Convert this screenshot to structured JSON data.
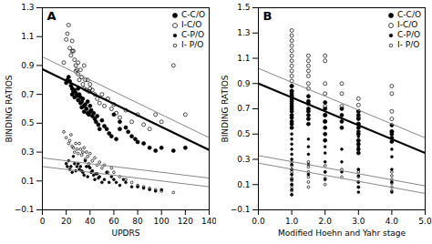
{
  "chart_data": [
    {
      "type": "scatter",
      "title": "A",
      "xlabel": "UPDRS",
      "ylabel": "BINDING RATIOS",
      "xlim": [
        0,
        140
      ],
      "ylim": [
        -0.1,
        1.3
      ],
      "xticks": [
        0,
        20,
        40,
        60,
        80,
        100,
        120,
        140
      ],
      "yticks": [
        -0.1,
        0.1,
        0.3,
        0.5,
        0.7,
        0.9,
        1.1,
        1.3
      ],
      "legend": "upper right",
      "series": [
        {
          "name": "C-C/O",
          "type": "scatter",
          "marker": "circle",
          "color": "#000000",
          "x": [
            20,
            21,
            22,
            23,
            24,
            25,
            25,
            26,
            27,
            27,
            28,
            29,
            30,
            30,
            31,
            32,
            32,
            33,
            33,
            34,
            35,
            35,
            36,
            37,
            38,
            38,
            39,
            40,
            40,
            41,
            42,
            43,
            44,
            45,
            46,
            47,
            48,
            50,
            52,
            54,
            56,
            58,
            60,
            62,
            65,
            65,
            70,
            72,
            75,
            78,
            80,
            85,
            90,
            95,
            100,
            110,
            120
          ],
          "values": [
            0.78,
            0.8,
            0.82,
            0.79,
            0.76,
            0.74,
            0.7,
            0.72,
            0.73,
            0.68,
            0.71,
            0.69,
            0.66,
            0.74,
            0.7,
            0.68,
            0.64,
            0.65,
            0.61,
            0.67,
            0.62,
            0.58,
            0.63,
            0.6,
            0.65,
            0.57,
            0.56,
            0.62,
            0.58,
            0.59,
            0.55,
            0.57,
            0.53,
            0.51,
            0.55,
            0.49,
            0.46,
            0.52,
            0.48,
            0.46,
            0.43,
            0.41,
            0.56,
            0.39,
            0.51,
            0.46,
            0.47,
            0.44,
            0.41,
            0.39,
            0.37,
            0.36,
            0.33,
            0.31,
            0.33,
            0.31,
            0.33
          ]
        },
        {
          "name": "I-C/O",
          "type": "scatter",
          "marker": "circle-open",
          "color": "#000000",
          "x": [
            18,
            20,
            21,
            22,
            23,
            24,
            25,
            25,
            26,
            27,
            28,
            28,
            29,
            30,
            30,
            31,
            32,
            33,
            34,
            35,
            35,
            36,
            37,
            38,
            39,
            40,
            40,
            42,
            44,
            46,
            48,
            50,
            52,
            55,
            58,
            60,
            62,
            65,
            70,
            75,
            80,
            85,
            90,
            95,
            100,
            110,
            120
          ],
          "values": [
            0.92,
            1.08,
            1.12,
            1.18,
            1.02,
            0.97,
            1.07,
            1.0,
            1.0,
            0.94,
            0.9,
            0.86,
            0.87,
            0.92,
            0.84,
            0.8,
            0.87,
            0.82,
            0.77,
            0.9,
            0.74,
            0.8,
            0.73,
            0.8,
            0.72,
            0.77,
            0.74,
            0.73,
            0.7,
            0.67,
            0.64,
            0.7,
            0.62,
            0.67,
            0.6,
            0.63,
            0.57,
            0.54,
            0.59,
            0.51,
            0.56,
            0.49,
            0.46,
            0.56,
            0.51,
            0.9,
            0.56
          ]
        },
        {
          "name": "C-P/O",
          "type": "scatter",
          "marker": "circle",
          "color": "#000000",
          "x": [
            20,
            21,
            22,
            23,
            24,
            25,
            26,
            27,
            28,
            29,
            30,
            31,
            32,
            33,
            34,
            35,
            36,
            37,
            38,
            39,
            40,
            41,
            42,
            43,
            44,
            45,
            46,
            47,
            48,
            50,
            52,
            54,
            56,
            58,
            60,
            62,
            65,
            68,
            70,
            75,
            80,
            85,
            90,
            95,
            100
          ],
          "values": [
            0.22,
            0.2,
            0.24,
            0.18,
            0.2,
            0.16,
            0.27,
            0.22,
            0.17,
            0.2,
            0.22,
            0.18,
            0.2,
            0.17,
            0.16,
            0.14,
            0.24,
            0.2,
            0.13,
            0.2,
            0.19,
            0.16,
            0.17,
            0.14,
            0.11,
            0.15,
            0.15,
            0.12,
            0.13,
            0.09,
            0.11,
            0.16,
            0.09,
            0.13,
            0.11,
            0.09,
            0.07,
            0.11,
            0.09,
            0.06,
            0.06,
            0.05,
            0.04,
            0.03,
            0.04
          ]
        },
        {
          "name": "I- P/O",
          "type": "scatter",
          "marker": "circle-open",
          "color": "#000000",
          "x": [
            18,
            20,
            22,
            23,
            24,
            25,
            26,
            27,
            28,
            29,
            30,
            31,
            32,
            33,
            34,
            35,
            36,
            37,
            38,
            39,
            40,
            42,
            44,
            46,
            48,
            50,
            52,
            55,
            58,
            60,
            65,
            70,
            75,
            80,
            85,
            90,
            95,
            100,
            110
          ],
          "values": [
            0.44,
            0.4,
            0.36,
            0.38,
            0.42,
            0.34,
            0.33,
            0.3,
            0.36,
            0.32,
            0.29,
            0.36,
            0.32,
            0.28,
            0.3,
            0.33,
            0.25,
            0.3,
            0.27,
            0.22,
            0.29,
            0.24,
            0.26,
            0.21,
            0.23,
            0.19,
            0.21,
            0.16,
            0.19,
            0.16,
            0.13,
            0.11,
            0.09,
            0.07,
            0.06,
            0.05,
            0.04,
            0.03,
            0.02
          ]
        },
        {
          "type": "line",
          "color": "#000000",
          "x": [
            0,
            140
          ],
          "values": [
            0.875,
            0.315
          ]
        },
        {
          "type": "line",
          "color": "#888888",
          "x": [
            0,
            140
          ],
          "values": [
            0.96,
            0.4
          ]
        },
        {
          "type": "line",
          "color": "#888888",
          "x": [
            0,
            140
          ],
          "values": [
            0.26,
            0.12
          ]
        },
        {
          "type": "line",
          "color": "#888888",
          "x": [
            0,
            140
          ],
          "values": [
            0.2,
            0.06
          ]
        }
      ]
    },
    {
      "type": "scatter",
      "title": "B",
      "xlabel": "Modified Hoehn and Yahr stage",
      "ylabel": "BINDING RATIOS",
      "xlim": [
        0,
        5
      ],
      "ylim": [
        -0.1,
        1.5
      ],
      "xticks": [
        0,
        1,
        2,
        3,
        4,
        5
      ],
      "yticks": [
        -0.1,
        0.1,
        0.3,
        0.5,
        0.7,
        0.9,
        1.1,
        1.3,
        1.5
      ],
      "legend": "upper right",
      "series": [
        {
          "name": "C-C/O",
          "type": "scatter",
          "marker": "circle",
          "color": "#000000",
          "x": [
            1,
            1,
            1,
            1,
            1,
            1,
            1,
            1,
            1,
            1,
            1,
            1,
            1,
            1,
            1,
            1.5,
            1.5,
            1.5,
            1.5,
            1.5,
            1.5,
            1.5,
            1.5,
            2,
            2,
            2,
            2,
            2,
            2,
            2,
            2.5,
            2.5,
            2.5,
            2.5,
            3,
            3,
            3,
            3,
            3,
            3,
            3,
            3,
            3,
            3,
            4,
            4,
            4,
            4,
            4
          ],
          "values": [
            0.88,
            0.84,
            0.82,
            0.8,
            0.78,
            0.76,
            0.74,
            0.72,
            0.7,
            0.68,
            0.65,
            0.63,
            0.6,
            0.58,
            0.55,
            0.8,
            0.76,
            0.74,
            0.7,
            0.68,
            0.65,
            0.62,
            0.58,
            0.75,
            0.7,
            0.65,
            0.6,
            0.55,
            0.5,
            0.45,
            0.7,
            0.65,
            0.6,
            0.55,
            0.68,
            0.65,
            0.62,
            0.58,
            0.55,
            0.5,
            0.45,
            0.42,
            0.38,
            0.35,
            0.57,
            0.52,
            0.5,
            0.47,
            0.44
          ]
        },
        {
          "name": "I-C/O",
          "type": "scatter",
          "marker": "circle-open",
          "color": "#000000",
          "x": [
            1,
            1,
            1,
            1,
            1,
            1,
            1,
            1,
            1,
            1,
            1,
            1,
            1,
            1,
            1.5,
            1.5,
            1.5,
            1.5,
            1.5,
            1.5,
            1.5,
            2,
            2,
            2,
            2,
            2,
            2,
            2,
            2.5,
            2.5,
            2.5,
            3,
            3,
            3,
            3,
            3,
            3,
            4,
            4,
            4,
            4,
            4
          ],
          "values": [
            1.32,
            1.28,
            1.24,
            1.2,
            1.16,
            1.12,
            1.08,
            1.04,
            1.0,
            0.96,
            0.92,
            0.88,
            0.84,
            0.8,
            1.12,
            1.08,
            1.04,
            1.0,
            0.96,
            0.9,
            0.86,
            1.12,
            1.08,
            0.9,
            0.82,
            0.72,
            0.65,
            0.6,
            0.9,
            0.82,
            0.72,
            0.78,
            0.73,
            0.68,
            0.63,
            0.58,
            0.52,
            0.88,
            0.82,
            0.68,
            0.62,
            0.52
          ]
        },
        {
          "name": "C-P/O",
          "type": "scatter",
          "marker": "circle",
          "color": "#000000",
          "x": [
            1,
            1,
            1,
            1,
            1,
            1,
            1,
            1,
            1,
            1,
            1,
            1,
            1,
            1.5,
            1.5,
            1.5,
            1.5,
            1.5,
            2,
            2,
            2,
            2,
            2,
            2,
            2.5,
            2.5,
            2.5,
            3,
            3,
            3,
            3,
            3,
            3,
            3,
            3,
            3,
            4,
            4,
            4,
            4,
            4
          ],
          "values": [
            0.5,
            0.46,
            0.42,
            0.38,
            0.34,
            0.3,
            0.26,
            0.22,
            0.18,
            0.14,
            0.1,
            0.06,
            0.02,
            0.46,
            0.4,
            0.34,
            0.26,
            0.18,
            0.45,
            0.4,
            0.35,
            0.28,
            0.2,
            0.14,
            0.38,
            0.28,
            0.2,
            0.52,
            0.48,
            0.44,
            0.4,
            0.22,
            0.17,
            0.12,
            0.08,
            0.04,
            0.38,
            0.32,
            0.22,
            0.12,
            0.04
          ]
        },
        {
          "name": "I- P/O",
          "type": "scatter",
          "marker": "circle-open",
          "color": "#000000",
          "x": [
            1,
            1,
            1,
            1,
            1,
            1,
            1,
            1,
            1,
            1,
            1,
            1.5,
            1.5,
            1.5,
            1.5,
            1.5,
            1.5,
            2,
            2,
            2,
            2,
            2.5,
            2.5,
            3,
            3,
            3,
            3,
            3,
            4,
            4,
            4,
            4,
            4,
            4
          ],
          "values": [
            0.28,
            0.25,
            0.22,
            0.2,
            0.18,
            0.15,
            0.13,
            0.1,
            0.08,
            0.05,
            0.02,
            0.28,
            0.24,
            0.2,
            0.16,
            0.12,
            0.08,
            0.25,
            0.2,
            0.15,
            0.1,
            0.22,
            0.16,
            0.22,
            0.2,
            0.16,
            0.12,
            0.08,
            0.2,
            0.17,
            0.14,
            0.11,
            0.08,
            0.05
          ]
        },
        {
          "type": "line",
          "color": "#000000",
          "x": [
            0,
            5
          ],
          "values": [
            0.9,
            0.35
          ]
        },
        {
          "type": "line",
          "color": "#888888",
          "x": [
            0,
            5
          ],
          "values": [
            1.02,
            0.47
          ]
        },
        {
          "type": "line",
          "color": "#888888",
          "x": [
            0,
            5
          ],
          "values": [
            0.33,
            0.09
          ]
        },
        {
          "type": "line",
          "color": "#888888",
          "x": [
            0,
            5
          ],
          "values": [
            0.27,
            0.03
          ]
        }
      ]
    }
  ]
}
